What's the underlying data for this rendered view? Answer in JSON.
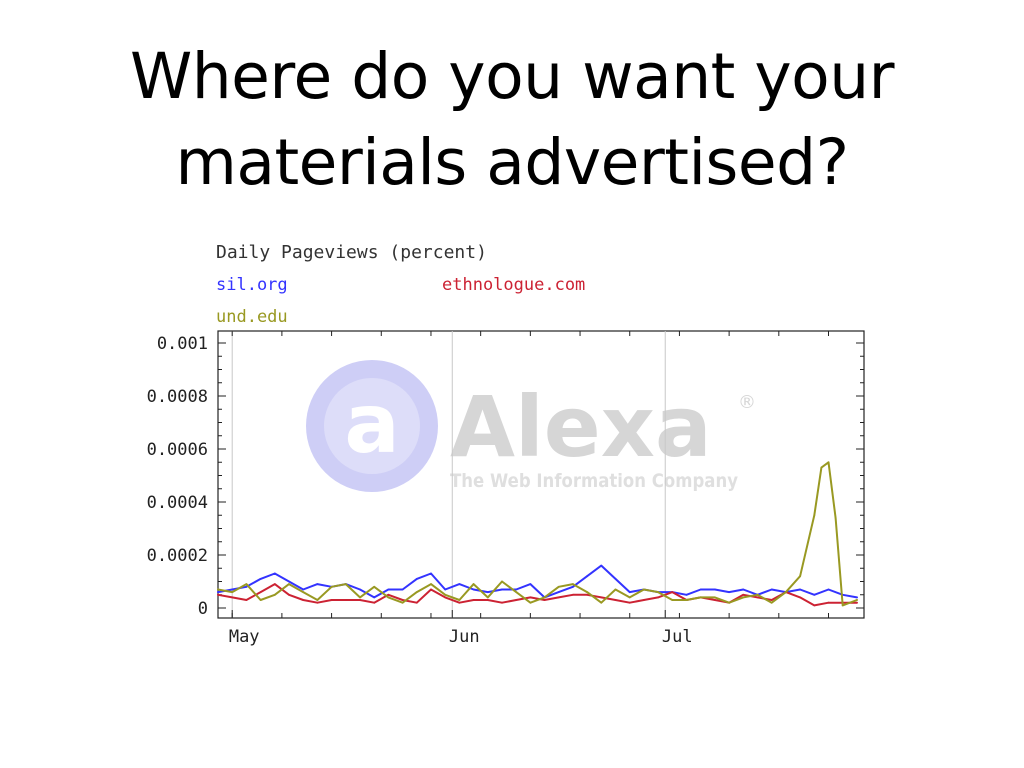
{
  "slide": {
    "title_line1": "Where do you want your",
    "title_line2": "materials advertised?"
  },
  "colors": {
    "sil_org": "#3333ff",
    "ethnologue_com": "#cc2233",
    "und_edu": "#999922",
    "watermark_blue": "#c7c7f5",
    "watermark_gray": "#d0d0d0"
  },
  "watermark": {
    "logo_glyph": "a",
    "brand": "Alexa",
    "registered": "®",
    "tagline": "The Web Information Company"
  },
  "chart_data": {
    "type": "line",
    "title": "Daily Pageviews (percent)",
    "xlabel": "",
    "ylabel": "",
    "ylim": [
      0,
      0.001
    ],
    "xlim": [
      "2009-04-29",
      "2009-07-29"
    ],
    "y_ticks": [
      "0",
      "0.0002",
      "0.0004",
      "0.0006",
      "0.0008",
      "0.001"
    ],
    "y_tick_values": [
      0,
      0.0002,
      0.0004,
      0.0006,
      0.0008,
      0.001
    ],
    "x_month_labels": [
      {
        "label": "May",
        "date": "2009-05-01"
      },
      {
        "label": "Jun",
        "date": "2009-06-01"
      },
      {
        "label": "Jul",
        "date": "2009-07-01"
      }
    ],
    "grid": "vertical month lines",
    "legend_placement": "top-left",
    "series": [
      {
        "name": "sil.org",
        "color": "#3333ff",
        "points": [
          [
            "2009-04-29",
            6e-05
          ],
          [
            "2009-05-01",
            7e-05
          ],
          [
            "2009-05-03",
            8e-05
          ],
          [
            "2009-05-05",
            0.00011
          ],
          [
            "2009-05-07",
            0.00013
          ],
          [
            "2009-05-09",
            0.0001
          ],
          [
            "2009-05-11",
            7e-05
          ],
          [
            "2009-05-13",
            9e-05
          ],
          [
            "2009-05-15",
            8e-05
          ],
          [
            "2009-05-17",
            9e-05
          ],
          [
            "2009-05-19",
            7e-05
          ],
          [
            "2009-05-21",
            4e-05
          ],
          [
            "2009-05-23",
            7e-05
          ],
          [
            "2009-05-25",
            7e-05
          ],
          [
            "2009-05-27",
            0.00011
          ],
          [
            "2009-05-29",
            0.00013
          ],
          [
            "2009-05-31",
            7e-05
          ],
          [
            "2009-06-02",
            9e-05
          ],
          [
            "2009-06-04",
            7e-05
          ],
          [
            "2009-06-06",
            6e-05
          ],
          [
            "2009-06-08",
            7e-05
          ],
          [
            "2009-06-10",
            7e-05
          ],
          [
            "2009-06-12",
            9e-05
          ],
          [
            "2009-06-14",
            4e-05
          ],
          [
            "2009-06-16",
            6e-05
          ],
          [
            "2009-06-18",
            8e-05
          ],
          [
            "2009-06-20",
            0.00012
          ],
          [
            "2009-06-22",
            0.00016
          ],
          [
            "2009-06-24",
            0.00011
          ],
          [
            "2009-06-26",
            6e-05
          ],
          [
            "2009-06-28",
            7e-05
          ],
          [
            "2009-06-30",
            6e-05
          ],
          [
            "2009-07-02",
            6e-05
          ],
          [
            "2009-07-04",
            5e-05
          ],
          [
            "2009-07-06",
            7e-05
          ],
          [
            "2009-07-08",
            7e-05
          ],
          [
            "2009-07-10",
            6e-05
          ],
          [
            "2009-07-12",
            7e-05
          ],
          [
            "2009-07-14",
            5e-05
          ],
          [
            "2009-07-16",
            7e-05
          ],
          [
            "2009-07-18",
            6e-05
          ],
          [
            "2009-07-20",
            7e-05
          ],
          [
            "2009-07-22",
            5e-05
          ],
          [
            "2009-07-24",
            7e-05
          ],
          [
            "2009-07-26",
            5e-05
          ],
          [
            "2009-07-28",
            4e-05
          ]
        ]
      },
      {
        "name": "ethnologue.com",
        "color": "#cc2233",
        "points": [
          [
            "2009-04-29",
            5e-05
          ],
          [
            "2009-05-01",
            4e-05
          ],
          [
            "2009-05-03",
            3e-05
          ],
          [
            "2009-05-05",
            6e-05
          ],
          [
            "2009-05-07",
            9e-05
          ],
          [
            "2009-05-09",
            5e-05
          ],
          [
            "2009-05-11",
            3e-05
          ],
          [
            "2009-05-13",
            2e-05
          ],
          [
            "2009-05-15",
            3e-05
          ],
          [
            "2009-05-17",
            3e-05
          ],
          [
            "2009-05-19",
            3e-05
          ],
          [
            "2009-05-21",
            2e-05
          ],
          [
            "2009-05-23",
            5e-05
          ],
          [
            "2009-05-25",
            3e-05
          ],
          [
            "2009-05-27",
            2e-05
          ],
          [
            "2009-05-29",
            7e-05
          ],
          [
            "2009-05-31",
            4e-05
          ],
          [
            "2009-06-02",
            2e-05
          ],
          [
            "2009-06-04",
            3e-05
          ],
          [
            "2009-06-06",
            3e-05
          ],
          [
            "2009-06-08",
            2e-05
          ],
          [
            "2009-06-10",
            3e-05
          ],
          [
            "2009-06-12",
            4e-05
          ],
          [
            "2009-06-14",
            3e-05
          ],
          [
            "2009-06-16",
            4e-05
          ],
          [
            "2009-06-18",
            5e-05
          ],
          [
            "2009-06-20",
            5e-05
          ],
          [
            "2009-06-22",
            4e-05
          ],
          [
            "2009-06-24",
            3e-05
          ],
          [
            "2009-06-26",
            2e-05
          ],
          [
            "2009-06-28",
            3e-05
          ],
          [
            "2009-06-30",
            4e-05
          ],
          [
            "2009-07-02",
            6e-05
          ],
          [
            "2009-07-04",
            3e-05
          ],
          [
            "2009-07-06",
            4e-05
          ],
          [
            "2009-07-08",
            3e-05
          ],
          [
            "2009-07-10",
            2e-05
          ],
          [
            "2009-07-12",
            5e-05
          ],
          [
            "2009-07-14",
            4e-05
          ],
          [
            "2009-07-16",
            3e-05
          ],
          [
            "2009-07-18",
            6e-05
          ],
          [
            "2009-07-20",
            4e-05
          ],
          [
            "2009-07-22",
            1e-05
          ],
          [
            "2009-07-24",
            2e-05
          ],
          [
            "2009-07-26",
            2e-05
          ],
          [
            "2009-07-28",
            2e-05
          ]
        ]
      },
      {
        "name": "und.edu",
        "color": "#999922",
        "points": [
          [
            "2009-04-29",
            7e-05
          ],
          [
            "2009-05-01",
            6e-05
          ],
          [
            "2009-05-03",
            9e-05
          ],
          [
            "2009-05-05",
            3e-05
          ],
          [
            "2009-05-07",
            5e-05
          ],
          [
            "2009-05-09",
            9e-05
          ],
          [
            "2009-05-11",
            6e-05
          ],
          [
            "2009-05-13",
            3e-05
          ],
          [
            "2009-05-15",
            8e-05
          ],
          [
            "2009-05-17",
            9e-05
          ],
          [
            "2009-05-19",
            4e-05
          ],
          [
            "2009-05-21",
            8e-05
          ],
          [
            "2009-05-23",
            4e-05
          ],
          [
            "2009-05-25",
            2e-05
          ],
          [
            "2009-05-27",
            6e-05
          ],
          [
            "2009-05-29",
            9e-05
          ],
          [
            "2009-05-31",
            5e-05
          ],
          [
            "2009-06-02",
            3e-05
          ],
          [
            "2009-06-04",
            9e-05
          ],
          [
            "2009-06-06",
            4e-05
          ],
          [
            "2009-06-08",
            0.0001
          ],
          [
            "2009-06-10",
            6e-05
          ],
          [
            "2009-06-12",
            2e-05
          ],
          [
            "2009-06-14",
            4e-05
          ],
          [
            "2009-06-16",
            8e-05
          ],
          [
            "2009-06-18",
            9e-05
          ],
          [
            "2009-06-20",
            6e-05
          ],
          [
            "2009-06-22",
            2e-05
          ],
          [
            "2009-06-24",
            7e-05
          ],
          [
            "2009-06-26",
            4e-05
          ],
          [
            "2009-06-28",
            7e-05
          ],
          [
            "2009-06-30",
            6e-05
          ],
          [
            "2009-07-02",
            3e-05
          ],
          [
            "2009-07-04",
            3e-05
          ],
          [
            "2009-07-06",
            4e-05
          ],
          [
            "2009-07-08",
            4e-05
          ],
          [
            "2009-07-10",
            2e-05
          ],
          [
            "2009-07-12",
            4e-05
          ],
          [
            "2009-07-14",
            5e-05
          ],
          [
            "2009-07-16",
            2e-05
          ],
          [
            "2009-07-18",
            6e-05
          ],
          [
            "2009-07-20",
            0.00012
          ],
          [
            "2009-07-22",
            0.00035
          ],
          [
            "2009-07-23",
            0.00053
          ],
          [
            "2009-07-24",
            0.00055
          ],
          [
            "2009-07-25",
            0.00034
          ],
          [
            "2009-07-26",
            1e-05
          ],
          [
            "2009-07-28",
            3e-05
          ]
        ]
      }
    ]
  }
}
